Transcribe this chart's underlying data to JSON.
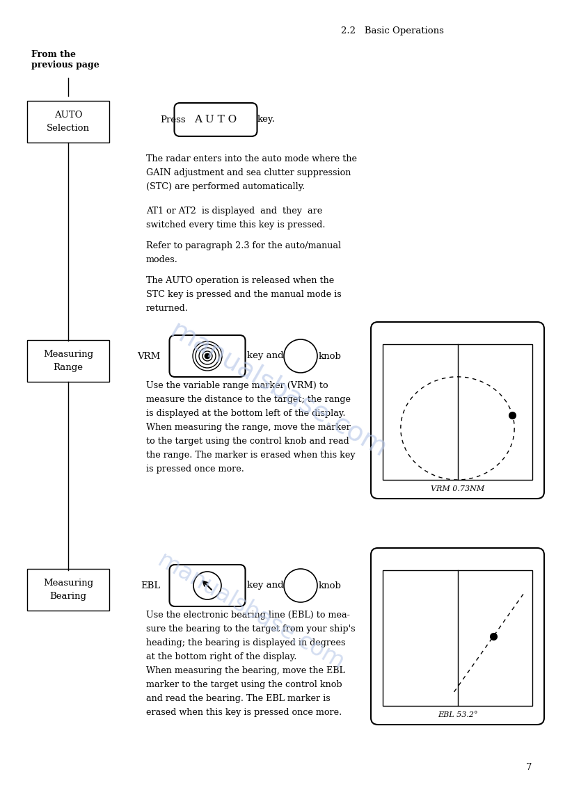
{
  "page_title": "2.2   Basic Operations",
  "page_number": "7",
  "bg_color": "#ffffff",
  "text_color": "#1a1a1a",
  "watermark_color": "#b8c8e8",
  "from_prev_text": "From the\nprevious page",
  "box1_label": "AUTO\nSelection",
  "box2_label": "Measuring\nRange",
  "box3_label": "Measuring\nBearing",
  "auto_key_label": "A U T O",
  "vrm_label": "VRM 0.73NM",
  "ebl_label": "EBL 53.2°"
}
